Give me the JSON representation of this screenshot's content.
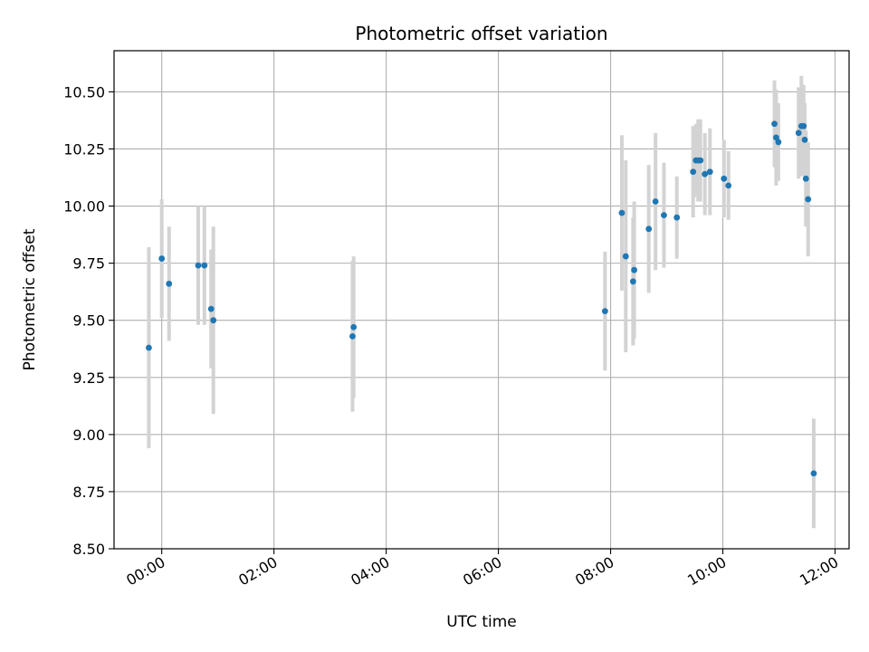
{
  "chart_data": {
    "type": "scatter",
    "title": "Photometric offset variation",
    "xlabel": "UTC time",
    "ylabel": "Photometric offset",
    "x_unit": "hours",
    "xlim": [
      -0.85,
      12.25
    ],
    "ylim": [
      8.5,
      10.68
    ],
    "grid": true,
    "x_ticks": [
      {
        "value": 0,
        "label": "00:00"
      },
      {
        "value": 2,
        "label": "02:00"
      },
      {
        "value": 4,
        "label": "04:00"
      },
      {
        "value": 6,
        "label": "06:00"
      },
      {
        "value": 8,
        "label": "08:00"
      },
      {
        "value": 10,
        "label": "10:00"
      },
      {
        "value": 12,
        "label": "12:00"
      }
    ],
    "y_ticks": [
      {
        "value": 8.5,
        "label": "8.50"
      },
      {
        "value": 8.75,
        "label": "8.75"
      },
      {
        "value": 9.0,
        "label": "9.00"
      },
      {
        "value": 9.25,
        "label": "9.25"
      },
      {
        "value": 9.5,
        "label": "9.50"
      },
      {
        "value": 9.75,
        "label": "9.75"
      },
      {
        "value": 10.0,
        "label": "10.00"
      },
      {
        "value": 10.25,
        "label": "10.25"
      },
      {
        "value": 10.5,
        "label": "10.50"
      }
    ],
    "colors": {
      "point": "#1f77b4",
      "errorbar": "#d3d3d3",
      "grid": "#b0b0b0"
    },
    "points": [
      {
        "x": -0.23,
        "y": 9.38,
        "err": 0.44
      },
      {
        "x": 0.0,
        "y": 9.77,
        "err": 0.26
      },
      {
        "x": 0.13,
        "y": 9.66,
        "err": 0.25
      },
      {
        "x": 0.65,
        "y": 9.74,
        "err": 0.26
      },
      {
        "x": 0.76,
        "y": 9.74,
        "err": 0.26
      },
      {
        "x": 0.88,
        "y": 9.55,
        "err": 0.26
      },
      {
        "x": 0.92,
        "y": 9.5,
        "err": 0.41
      },
      {
        "x": 3.4,
        "y": 9.43,
        "err": 0.33
      },
      {
        "x": 3.42,
        "y": 9.47,
        "err": 0.31
      },
      {
        "x": 7.9,
        "y": 9.54,
        "err": 0.26
      },
      {
        "x": 8.2,
        "y": 9.97,
        "err": 0.34
      },
      {
        "x": 8.27,
        "y": 9.78,
        "err": 0.42
      },
      {
        "x": 8.4,
        "y": 9.67,
        "err": 0.28
      },
      {
        "x": 8.42,
        "y": 9.72,
        "err": 0.3
      },
      {
        "x": 8.68,
        "y": 9.9,
        "err": 0.28
      },
      {
        "x": 8.8,
        "y": 10.02,
        "err": 0.3
      },
      {
        "x": 8.95,
        "y": 9.96,
        "err": 0.23
      },
      {
        "x": 9.18,
        "y": 9.95,
        "err": 0.18
      },
      {
        "x": 9.47,
        "y": 10.15,
        "err": 0.2
      },
      {
        "x": 9.52,
        "y": 10.2,
        "err": 0.16
      },
      {
        "x": 9.56,
        "y": 10.2,
        "err": 0.18
      },
      {
        "x": 9.6,
        "y": 10.2,
        "err": 0.18
      },
      {
        "x": 9.68,
        "y": 10.14,
        "err": 0.18
      },
      {
        "x": 9.77,
        "y": 10.15,
        "err": 0.19
      },
      {
        "x": 10.02,
        "y": 10.12,
        "err": 0.17
      },
      {
        "x": 10.1,
        "y": 10.09,
        "err": 0.15
      },
      {
        "x": 10.92,
        "y": 10.36,
        "err": 0.19
      },
      {
        "x": 10.95,
        "y": 10.3,
        "err": 0.21
      },
      {
        "x": 10.99,
        "y": 10.28,
        "err": 0.17
      },
      {
        "x": 11.35,
        "y": 10.32,
        "err": 0.2
      },
      {
        "x": 11.4,
        "y": 10.35,
        "err": 0.22
      },
      {
        "x": 11.44,
        "y": 10.35,
        "err": 0.18
      },
      {
        "x": 11.46,
        "y": 10.29,
        "err": 0.16
      },
      {
        "x": 11.48,
        "y": 10.12,
        "err": 0.21
      },
      {
        "x": 11.52,
        "y": 10.03,
        "err": 0.25
      },
      {
        "x": 11.62,
        "y": 8.83,
        "err": 0.24
      }
    ]
  }
}
